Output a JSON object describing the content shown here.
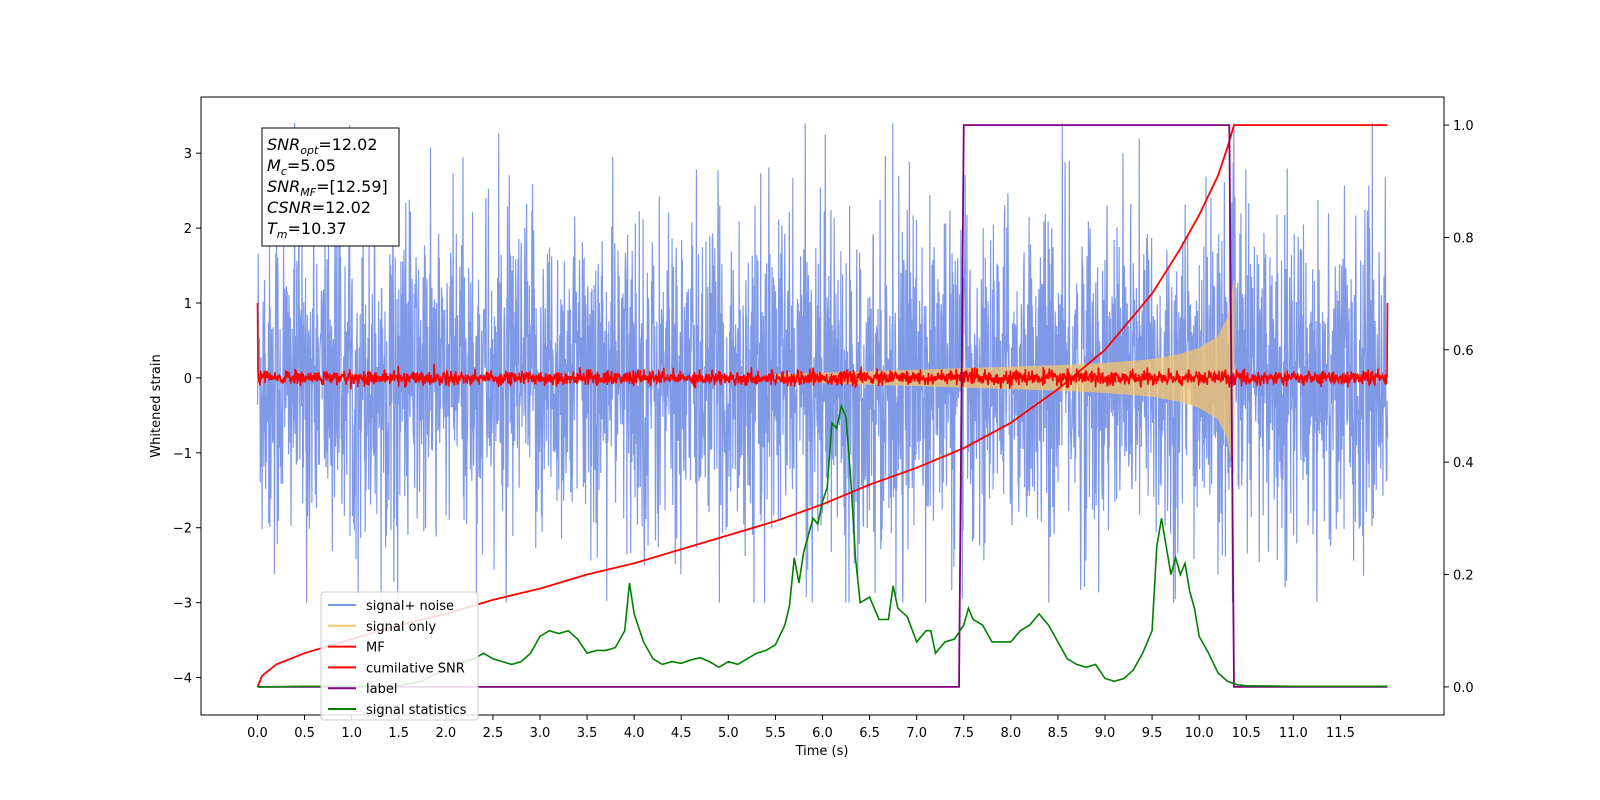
{
  "chart_data": {
    "type": "line",
    "xlabel": "Time (s)",
    "ylabel": "Whitened strain",
    "xlim": [
      -0.6,
      12.6
    ],
    "ylim": [
      -4.5,
      3.75
    ],
    "y2lim": [
      -0.05,
      1.05
    ],
    "x_ticks": [
      0.0,
      0.5,
      1.0,
      1.5,
      2.0,
      2.5,
      3.0,
      3.5,
      4.0,
      4.5,
      5.0,
      5.5,
      6.0,
      6.5,
      7.0,
      7.5,
      8.0,
      8.5,
      9.0,
      9.5,
      10.0,
      10.5,
      11.0,
      11.5
    ],
    "x_tick_labels": [
      "0.0",
      "0.5",
      "1.0",
      "1.5",
      "2.0",
      "2.5",
      "3.0",
      "3.5",
      "4.0",
      "4.5",
      "5.0",
      "5.5",
      "6.0",
      "6.5",
      "7.0",
      "7.5",
      "8.0",
      "8.5",
      "9.0",
      "9.5",
      "10.0",
      "10.5",
      "11.0",
      "11.5"
    ],
    "y_ticks": [
      -4,
      -3,
      -2,
      -1,
      0,
      1,
      2,
      3
    ],
    "y_tick_labels": [
      "−4",
      "−3",
      "−2",
      "−1",
      "0",
      "1",
      "2",
      "3"
    ],
    "y2_ticks": [
      0.0,
      0.2,
      0.4,
      0.6,
      0.8,
      1.0
    ],
    "y2_tick_labels": [
      "0.0",
      "0.2",
      "0.4",
      "0.6",
      "0.8",
      "1.0"
    ],
    "grid": false,
    "legend_placement": "lower-left",
    "info_box": {
      "lines": [
        {
          "main": "SNR",
          "sub": "opt",
          "value": "=12.02"
        },
        {
          "main": "M",
          "sub": "c",
          "value": "=5.05"
        },
        {
          "main": "SNR",
          "sub": "MF",
          "value": "=[12.59]"
        },
        {
          "main": "CSNR",
          "sub": "",
          "value": "=12.02"
        },
        {
          "main": "T",
          "sub": "m",
          "value": "=10.37"
        }
      ]
    },
    "series": [
      {
        "name": "signal+ noise",
        "color": "#7893e6",
        "axis": "left",
        "kind": "noise",
        "x_start": 0.0,
        "x_end": 12.0,
        "std": 0.95,
        "peak_min": -3.0,
        "peak_max": 3.4
      },
      {
        "name": "signal only",
        "color": "#f5c66b",
        "axis": "left",
        "kind": "chirp",
        "x_start": 0.0,
        "x_end": 10.37,
        "envelope": {
          "x": [
            5.5,
            6.5,
            7.5,
            8.5,
            9.0,
            9.5,
            9.8,
            10.0,
            10.2,
            10.3,
            10.37
          ],
          "amp": [
            0.05,
            0.09,
            0.13,
            0.17,
            0.2,
            0.25,
            0.32,
            0.4,
            0.55,
            0.8,
            1.3
          ]
        }
      },
      {
        "name": "MF",
        "color": "#ff0000",
        "axis": "left",
        "kind": "noise",
        "x_start": 0.0,
        "x_end": 12.0,
        "std": 0.05,
        "edge_value": 1.0
      },
      {
        "name": "cumilative SNR",
        "color": "#ff0000",
        "axis": "right",
        "x": [
          0.0,
          0.05,
          0.2,
          0.5,
          1.0,
          1.5,
          2.0,
          2.5,
          3.0,
          3.5,
          4.0,
          4.5,
          5.0,
          5.5,
          6.0,
          6.5,
          7.0,
          7.5,
          8.0,
          8.5,
          9.0,
          9.5,
          9.8,
          10.0,
          10.2,
          10.3,
          10.37,
          12.0
        ],
        "y": [
          0.0,
          0.02,
          0.04,
          0.06,
          0.085,
          0.11,
          0.13,
          0.155,
          0.175,
          0.2,
          0.22,
          0.245,
          0.27,
          0.295,
          0.325,
          0.36,
          0.39,
          0.425,
          0.47,
          0.53,
          0.6,
          0.7,
          0.78,
          0.84,
          0.91,
          0.96,
          1.0,
          1.0
        ]
      },
      {
        "name": "label",
        "color": "#800080",
        "axis": "right",
        "x": [
          0.0,
          7.45,
          7.5,
          10.32,
          10.37,
          12.0
        ],
        "y": [
          0.0,
          0.0,
          1.0,
          1.0,
          0.0,
          0.0
        ]
      },
      {
        "name": "signal statistics",
        "color": "#008000",
        "axis": "right",
        "x": [
          0.0,
          0.5,
          1.0,
          1.5,
          1.75,
          1.85,
          2.0,
          2.2,
          2.3,
          2.4,
          2.5,
          2.6,
          2.7,
          2.8,
          2.9,
          3.0,
          3.1,
          3.2,
          3.3,
          3.4,
          3.5,
          3.6,
          3.7,
          3.8,
          3.9,
          3.95,
          4.0,
          4.1,
          4.2,
          4.3,
          4.4,
          4.5,
          4.6,
          4.7,
          4.8,
          4.9,
          5.0,
          5.1,
          5.2,
          5.3,
          5.4,
          5.5,
          5.6,
          5.65,
          5.7,
          5.75,
          5.8,
          5.85,
          5.9,
          5.95,
          6.0,
          6.05,
          6.1,
          6.15,
          6.2,
          6.25,
          6.3,
          6.35,
          6.4,
          6.5,
          6.6,
          6.7,
          6.75,
          6.8,
          6.9,
          7.0,
          7.1,
          7.15,
          7.2,
          7.3,
          7.4,
          7.5,
          7.55,
          7.6,
          7.7,
          7.8,
          7.9,
          8.0,
          8.1,
          8.2,
          8.3,
          8.4,
          8.5,
          8.6,
          8.7,
          8.8,
          8.9,
          9.0,
          9.1,
          9.2,
          9.3,
          9.4,
          9.5,
          9.55,
          9.6,
          9.65,
          9.7,
          9.75,
          9.8,
          9.85,
          9.9,
          9.95,
          10.0,
          10.1,
          10.2,
          10.3,
          10.4,
          10.5,
          11.0,
          11.5,
          12.0
        ],
        "y": [
          0.0,
          0.001,
          0.001,
          0.002,
          0.01,
          0.02,
          0.03,
          0.045,
          0.05,
          0.06,
          0.05,
          0.045,
          0.04,
          0.045,
          0.06,
          0.09,
          0.1,
          0.095,
          0.1,
          0.085,
          0.06,
          0.065,
          0.065,
          0.07,
          0.1,
          0.185,
          0.13,
          0.08,
          0.05,
          0.04,
          0.045,
          0.042,
          0.048,
          0.052,
          0.045,
          0.035,
          0.045,
          0.04,
          0.05,
          0.06,
          0.065,
          0.075,
          0.11,
          0.145,
          0.23,
          0.185,
          0.24,
          0.27,
          0.3,
          0.29,
          0.33,
          0.355,
          0.47,
          0.46,
          0.5,
          0.48,
          0.37,
          0.23,
          0.15,
          0.16,
          0.12,
          0.12,
          0.18,
          0.14,
          0.125,
          0.08,
          0.1,
          0.1,
          0.06,
          0.08,
          0.085,
          0.11,
          0.14,
          0.12,
          0.11,
          0.08,
          0.08,
          0.08,
          0.1,
          0.11,
          0.13,
          0.11,
          0.08,
          0.05,
          0.04,
          0.035,
          0.04,
          0.015,
          0.01,
          0.015,
          0.03,
          0.06,
          0.1,
          0.25,
          0.3,
          0.25,
          0.2,
          0.23,
          0.2,
          0.22,
          0.17,
          0.14,
          0.09,
          0.06,
          0.025,
          0.01,
          0.004,
          0.002,
          0.001,
          0.001,
          0.001
        ]
      }
    ]
  }
}
